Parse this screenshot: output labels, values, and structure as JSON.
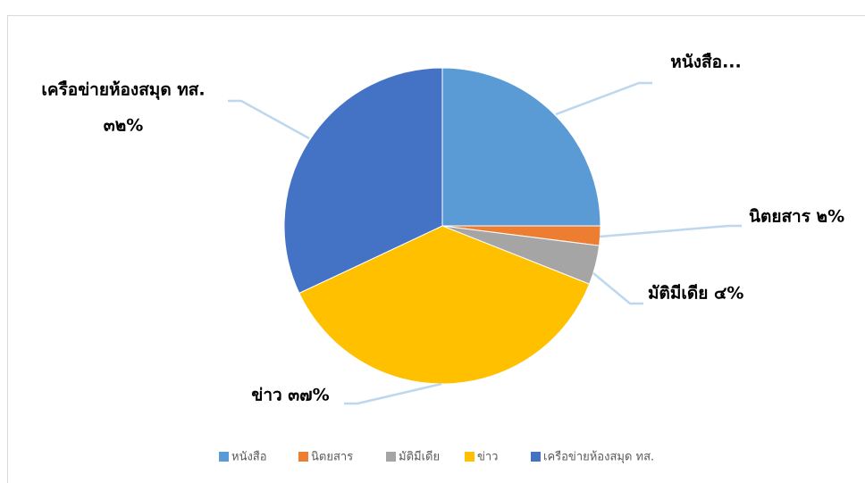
{
  "chart_data": {
    "type": "pie",
    "categories": [
      "หนังสือ",
      "นิตยสาร",
      "มัติมีเดีย",
      "ข่าว",
      "เครือข่ายห้องสมุด ทส."
    ],
    "values": [
      25,
      2,
      4,
      37,
      32
    ],
    "colors": [
      "#5b9bd5",
      "#ed7d31",
      "#a5a5a5",
      "#ffc000",
      "#4472c4"
    ],
    "data_labels": [
      "หนังสือ...",
      "นิตยสาร ๒%",
      "มัติมีเดีย ๔%",
      "ข่าว ๓๗%",
      [
        "เครือข่ายห้องสมุด ทส.",
        "๓๒%"
      ]
    ],
    "legend": "bottom"
  }
}
